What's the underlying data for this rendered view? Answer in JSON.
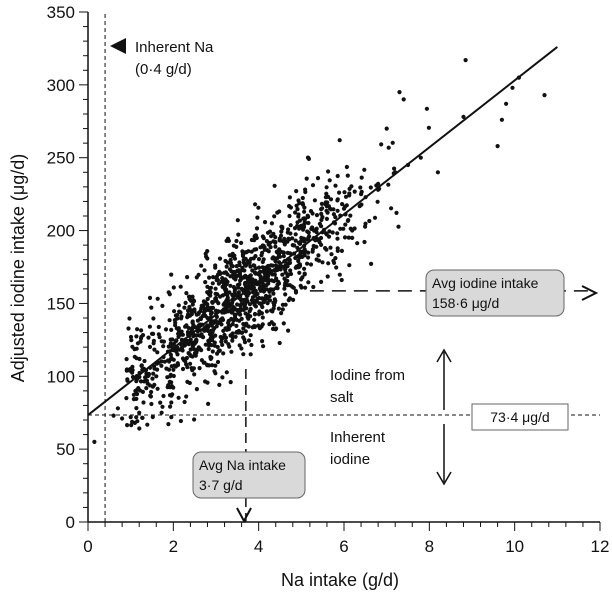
{
  "chart_data": {
    "type": "scatter",
    "xlabel": "Na intake (g/d)",
    "ylabel": "Adjusted iodine intake (μg/d)",
    "xlim": [
      0,
      12
    ],
    "ylim": [
      0,
      350
    ],
    "xticks": [
      "0",
      "2",
      "4",
      "6",
      "8",
      "10",
      "12"
    ],
    "yticks": [
      "0",
      "50",
      "100",
      "150",
      "200",
      "250",
      "300",
      "350"
    ],
    "regression_line": {
      "x": [
        0,
        11
      ],
      "y": [
        73.4,
        326
      ]
    },
    "reference_lines": {
      "inherent_na": 0.4,
      "inherent_iodine": 73.4,
      "avg_iodine": 158.6,
      "avg_na": 3.7
    },
    "annotations": {
      "inherent_na_line1": "Inherent Na",
      "inherent_na_line2": "(0·4 g/d)",
      "avg_iodine_line1": "Avg iodine intake",
      "avg_iodine_line2": "158·6 μg/d",
      "iodine_salt_line1": "Iodine from",
      "iodine_salt_line2": "salt",
      "inherent_iodine_line1": "Inherent",
      "inherent_iodine_line2": "iodine",
      "inherent_iodine_value": "73·4 μg/d",
      "avg_na_line1": "Avg Na intake",
      "avg_na_line2": "3·7 g/d"
    },
    "points": [
      [
        0.15,
        55
      ],
      [
        0.6,
        73
      ],
      [
        0.7,
        78
      ],
      [
        0.8,
        71
      ],
      [
        1.0,
        72
      ],
      [
        1.1,
        68
      ],
      [
        1.2,
        75
      ],
      [
        1.3,
        82
      ],
      [
        1.4,
        95
      ],
      [
        0.9,
        85
      ],
      [
        1.6,
        100
      ],
      [
        1.8,
        110
      ],
      [
        2.0,
        118
      ],
      [
        2.2,
        125
      ],
      [
        2.4,
        130
      ],
      [
        2.6,
        135
      ],
      [
        2.8,
        140
      ],
      [
        3.0,
        145
      ],
      [
        3.2,
        150
      ],
      [
        3.4,
        155
      ],
      [
        3.6,
        160
      ],
      [
        3.8,
        165
      ],
      [
        4.0,
        170
      ],
      [
        4.2,
        175
      ],
      [
        4.5,
        182
      ],
      [
        4.8,
        190
      ],
      [
        5.0,
        195
      ],
      [
        5.3,
        200
      ],
      [
        5.6,
        208
      ],
      [
        6.0,
        215
      ],
      [
        6.4,
        225
      ],
      [
        6.8,
        232
      ],
      [
        7.2,
        240
      ],
      [
        7.5,
        245
      ],
      [
        7.8,
        250
      ],
      [
        8.2,
        240
      ],
      [
        8.8,
        278
      ],
      [
        9.6,
        258
      ],
      [
        9.7,
        276
      ],
      [
        9.8,
        287
      ],
      [
        9.95,
        298
      ],
      [
        10.1,
        305
      ],
      [
        10.7,
        293
      ],
      [
        8.85,
        317
      ],
      [
        7.3,
        295
      ],
      [
        7.4,
        290
      ],
      [
        7.0,
        270
      ],
      [
        6.8,
        228
      ],
      [
        5.9,
        262
      ]
    ]
  }
}
